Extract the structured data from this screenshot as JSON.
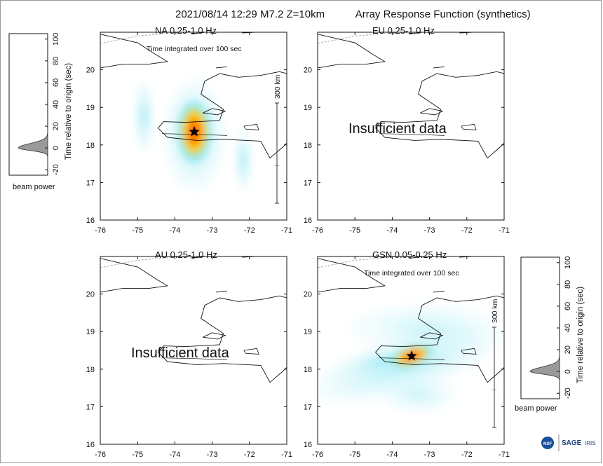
{
  "header": {
    "title": "2021/08/14 12:29  M7.2  Z=10km",
    "subtitle": "Array Response Function (synthetics)"
  },
  "chart_data": [
    {
      "type": "heatmap",
      "title": "NA  0.25-1.0 Hz",
      "annotation": "Time integrated over 100 sec",
      "scale_label": "300 km",
      "has_data": true,
      "epicenter": {
        "lon": -73.48,
        "lat": 18.35
      },
      "xlim": [
        -76,
        -71
      ],
      "ylim": [
        16,
        21
      ],
      "xticks": [
        -76,
        -75,
        -74,
        -73,
        -72,
        -71
      ],
      "yticks": [
        16,
        17,
        18,
        19,
        20
      ]
    },
    {
      "type": "heatmap",
      "title": "EU  0.25-1.0 Hz",
      "message": "Insufficient data",
      "has_data": false,
      "xlim": [
        -76,
        -71
      ],
      "ylim": [
        16,
        21
      ],
      "xticks": [
        -76,
        -75,
        -74,
        -73,
        -72,
        -71
      ],
      "yticks": [
        16,
        17,
        18,
        19,
        20
      ]
    },
    {
      "type": "heatmap",
      "title": "AU  0.25-1.0 Hz",
      "message": "Insufficient data",
      "has_data": false,
      "xlim": [
        -76,
        -71
      ],
      "ylim": [
        16,
        21
      ],
      "xticks": [
        -76,
        -75,
        -74,
        -73,
        -72,
        -71
      ],
      "yticks": [
        16,
        17,
        18,
        19,
        20
      ]
    },
    {
      "type": "heatmap",
      "title": "GSN  0.05-0.25 Hz",
      "annotation": "Time integrated over 100 sec",
      "scale_label": "300 km",
      "has_data": true,
      "epicenter": {
        "lon": -73.48,
        "lat": 18.35
      },
      "xlim": [
        -76,
        -71
      ],
      "ylim": [
        16,
        21
      ],
      "xticks": [
        -76,
        -75,
        -74,
        -73,
        -72,
        -71
      ],
      "yticks": [
        16,
        17,
        18,
        19,
        20
      ]
    },
    {
      "type": "area",
      "title": "beam power",
      "ylabel": "Time relative to origin (sec)",
      "ylim": [
        -25,
        105
      ],
      "yticks": [
        -20,
        0,
        20,
        40,
        60,
        80,
        100
      ],
      "peak_time": 0
    },
    {
      "type": "area",
      "title": "beam power",
      "ylabel": "Time relative to origin (sec)",
      "ylim": [
        -25,
        105
      ],
      "yticks": [
        -20,
        0,
        20,
        40,
        60,
        80,
        100
      ],
      "peak_time": 0
    }
  ],
  "logos": {
    "nsf": "NSF",
    "sage": "SAGE",
    "iris": "IRIS"
  },
  "colors": {
    "hot": "#ff2a00",
    "warm": "#ffd400",
    "cool": "#7fe6f2",
    "faint": "#d8f6fb",
    "coast": "#111111",
    "beam": "#9a9a9a"
  }
}
